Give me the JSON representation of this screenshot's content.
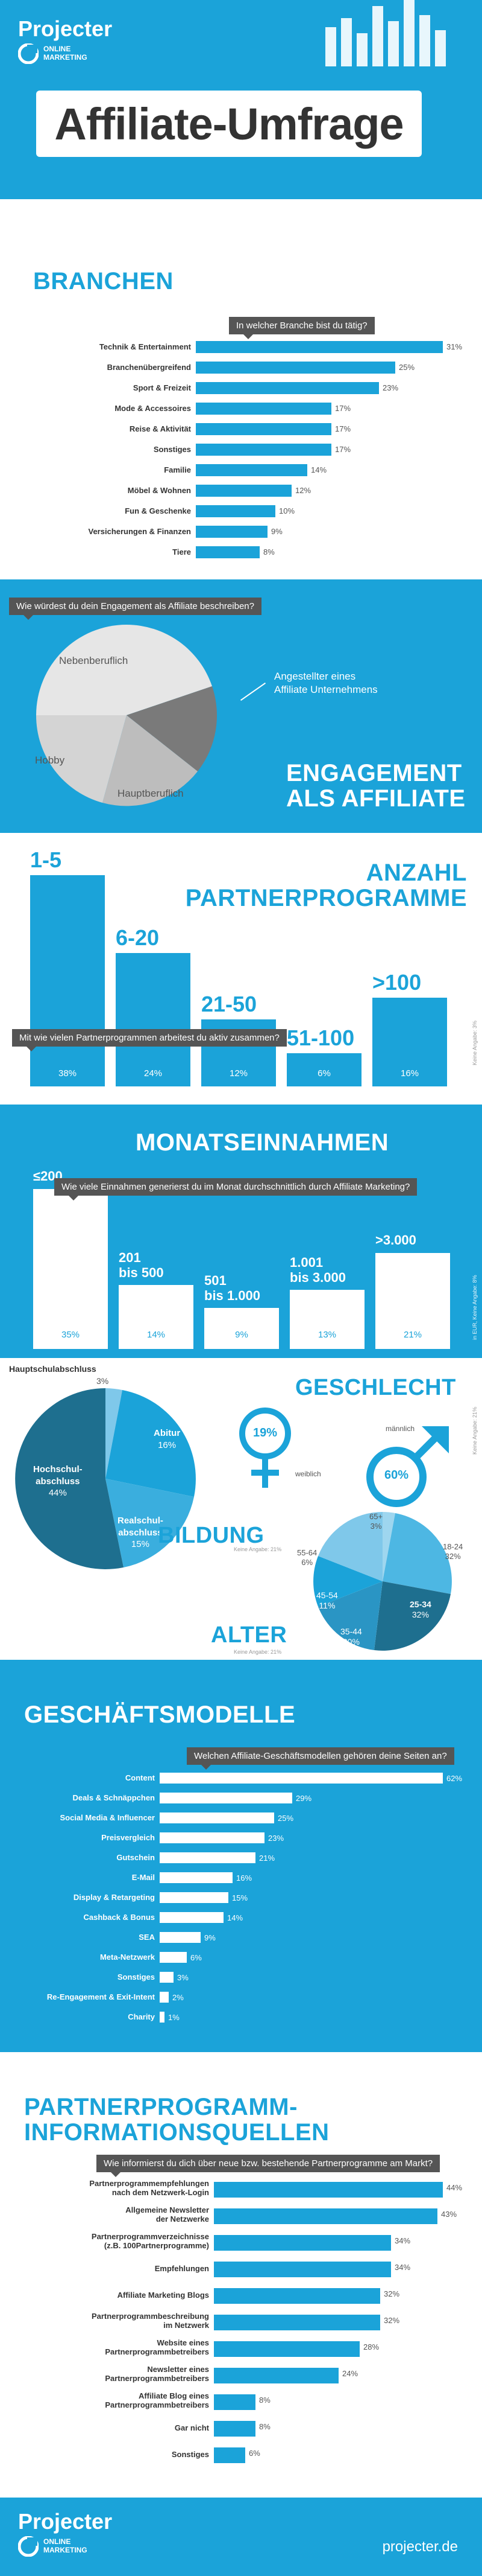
{
  "brand": {
    "name": "Projecter",
    "sub_line1": "ONLINE",
    "sub_line2": "MARKETING",
    "title": "Affiliate-Umfrage",
    "footer_url": "projecter.de"
  },
  "colors": {
    "accent": "#1ba3d9",
    "dark": "#555555",
    "light": "#dff1fa",
    "pie_light": "#e6e6e6",
    "pie_mid": "#bdbdbd",
    "pie_dark": "#7a7a7a"
  },
  "branchen": {
    "title": "BRANCHEN",
    "question": "In welcher Branche bist du tätig?",
    "rows": [
      {
        "label": "Technik & Entertainment",
        "value": 31,
        "text": "31%"
      },
      {
        "label": "Branchenübergreifend",
        "value": 25,
        "text": "25%"
      },
      {
        "label": "Sport & Freizeit",
        "value": 23,
        "text": "23%"
      },
      {
        "label": "Mode & Accessoires",
        "value": 17,
        "text": "17%"
      },
      {
        "label": "Reise & Aktivität",
        "value": 17,
        "text": "17%"
      },
      {
        "label": "Sonstiges",
        "value": 17,
        "text": "17%"
      },
      {
        "label": "Familie",
        "value": 14,
        "text": "14%"
      },
      {
        "label": "Möbel & Wohnen",
        "value": 12,
        "text": "12%"
      },
      {
        "label": "Fun & Geschenke",
        "value": 10,
        "text": "10%"
      },
      {
        "label": "Versicherungen & Finanzen",
        "value": 9,
        "text": "9%"
      },
      {
        "label": "Tiere",
        "value": 8,
        "text": "8%"
      }
    ]
  },
  "engagement": {
    "title_line1": "ENGAGEMENT",
    "title_line2": "ALS AFFILIATE",
    "question": "Wie würdest du dein Engagement als Affiliate beschreiben?",
    "label_neben": "Nebenberuflich",
    "label_angestellt_1": "Angestellter eines",
    "label_angestellt_2": "Affiliate Unternehmens",
    "label_hobby": "Hobby",
    "label_haupt": "Hauptberuflich"
  },
  "partnerprogramme": {
    "title_line1": "ANZAHL",
    "title_line2": "PARTNERPROGRAMME",
    "question": "Mit wie vielen Partnerprogrammen arbeitest du aktiv zusammen?",
    "note": "Keine Angabe: 3%",
    "bars": [
      {
        "label": "1-5",
        "value": 38,
        "text": "38%"
      },
      {
        "label": "6-20",
        "value": 24,
        "text": "24%"
      },
      {
        "label": "21-50",
        "value": 12,
        "text": "12%"
      },
      {
        "label": "51-100",
        "value": 6,
        "text": "6%"
      },
      {
        "label": ">100",
        "value": 16,
        "text": "16%"
      }
    ]
  },
  "monatseinnahmen": {
    "title": "MONATSEINNAHMEN",
    "question": "Wie viele Einnahmen generierst du im Monat durchschnittlich durch Affiliate Marketing?",
    "note": "in EUR, Keine Angabe: 8%",
    "bars": [
      {
        "label1": "≤200",
        "label2": "",
        "value": 35,
        "text": "35%"
      },
      {
        "label1": "201",
        "label2": "bis 500",
        "value": 14,
        "text": "14%"
      },
      {
        "label1": "501",
        "label2": "bis 1.000",
        "value": 9,
        "text": "9%"
      },
      {
        "label1": "1.001",
        "label2": "bis 3.000",
        "value": 13,
        "text": "13%"
      },
      {
        "label1": ">3.000",
        "label2": "",
        "value": 21,
        "text": "21%"
      }
    ]
  },
  "bildung": {
    "title": "BILDUNG",
    "note": "Keine Angabe: 21%",
    "slices": [
      {
        "label1": "Hauptschulabschluss",
        "label2": "",
        "text": "3%",
        "value": 3
      },
      {
        "label1": "Abitur",
        "label2": "",
        "text": "16%",
        "value": 16
      },
      {
        "label1": "Realschul-",
        "label2": "abschluss",
        "text": "15%",
        "value": 15
      },
      {
        "label1": "Hochschul-",
        "label2": "abschluss",
        "text": "44%",
        "value": 44
      }
    ]
  },
  "geschlecht": {
    "title": "GESCHLECHT",
    "note": "Keine Angabe: 21%",
    "female_label": "weiblich",
    "female_text": "19%",
    "male_label": "männlich",
    "male_text": "60%"
  },
  "alter": {
    "title": "ALTER",
    "note": "Keine Angabe: 21%",
    "slices": [
      {
        "label": "65+",
        "text": "3%",
        "value": 3
      },
      {
        "label": "18-24",
        "text": "32%",
        "value": 32
      },
      {
        "label": "25-34",
        "text": "32%",
        "value": 32
      },
      {
        "label": "35-44",
        "text": "20%",
        "value": 20
      },
      {
        "label": "45-54",
        "text": "11%",
        "value": 11
      },
      {
        "label": "55-64",
        "text": "6%",
        "value": 6
      }
    ]
  },
  "geschaeftsmodelle": {
    "title": "GESCHÄFTSMODELLE",
    "question": "Welchen Affiliate-Geschäftsmodellen gehören deine Seiten an?",
    "rows": [
      {
        "label": "Content",
        "value": 62,
        "text": "62%"
      },
      {
        "label": "Deals & Schnäppchen",
        "value": 29,
        "text": "29%"
      },
      {
        "label": "Social Media & Influencer",
        "value": 25,
        "text": "25%"
      },
      {
        "label": "Preisvergleich",
        "value": 23,
        "text": "23%"
      },
      {
        "label": "Gutschein",
        "value": 21,
        "text": "21%"
      },
      {
        "label": "E-Mail",
        "value": 16,
        "text": "16%"
      },
      {
        "label": "Display & Retargeting",
        "value": 15,
        "text": "15%"
      },
      {
        "label": "Cashback & Bonus",
        "value": 14,
        "text": "14%"
      },
      {
        "label": "SEA",
        "value": 9,
        "text": "9%"
      },
      {
        "label": "Meta-Netzwerk",
        "value": 6,
        "text": "6%"
      },
      {
        "label": "Sonstiges",
        "value": 3,
        "text": "3%"
      },
      {
        "label": "Re-Engagement & Exit-Intent",
        "value": 2,
        "text": "2%"
      },
      {
        "label": "Charity",
        "value": 1,
        "text": "1%"
      }
    ]
  },
  "infoquellen": {
    "title_line1": "PARTNERPROGRAMM-",
    "title_line2": "INFORMATIONSQUELLEN",
    "question": "Wie informierst du dich über neue bzw. bestehende Partnerprogramme am Markt?",
    "rows": [
      {
        "label1": "Partnerprogrammempfehlungen",
        "label2": "nach dem Netzwerk-Login",
        "value": 44,
        "text": "44%"
      },
      {
        "label1": "Allgemeine Newsletter",
        "label2": "der Netzwerke",
        "value": 43,
        "text": "43%"
      },
      {
        "label1": "Partnerprogrammverzeichnisse",
        "label2": "(z.B. 100Partnerprogramme)",
        "value": 34,
        "text": "34%"
      },
      {
        "label1": "Empfehlungen",
        "label2": "",
        "value": 34,
        "text": "34%"
      },
      {
        "label1": "Affiliate Marketing Blogs",
        "label2": "",
        "value": 32,
        "text": "32%"
      },
      {
        "label1": "Partnerprogrammbeschreibung",
        "label2": "im Netzwerk",
        "value": 32,
        "text": "32%"
      },
      {
        "label1": "Website eines",
        "label2": "Partnerprogrammbetreibers",
        "value": 28,
        "text": "28%"
      },
      {
        "label1": "Newsletter eines",
        "label2": "Partnerprogrammbetreibers",
        "value": 24,
        "text": "24%"
      },
      {
        "label1": "Affiliate Blog eines",
        "label2": "Partnerprogrammbetreibers",
        "value": 8,
        "text": "8%"
      },
      {
        "label1": "Gar nicht",
        "label2": "",
        "value": 8,
        "text": "8%"
      },
      {
        "label1": "Sonstiges",
        "label2": "",
        "value": 6,
        "text": "6%"
      }
    ]
  }
}
